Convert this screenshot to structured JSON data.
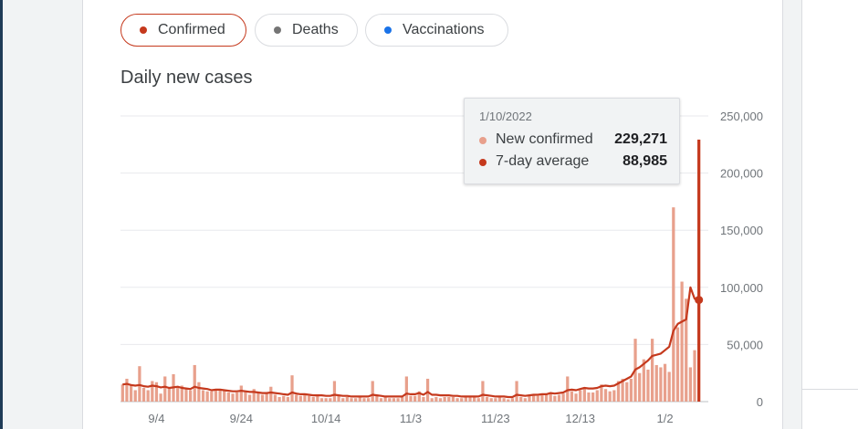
{
  "filters": [
    {
      "label": "Confirmed",
      "color": "#c5391d",
      "selected": true
    },
    {
      "label": "Deaths",
      "color": "#757575",
      "selected": false
    },
    {
      "label": "Vaccinations",
      "color": "#1a73e8",
      "selected": false
    }
  ],
  "tooltip": {
    "date": "1/10/2022",
    "rows": [
      {
        "label": "New confirmed",
        "value": "229,271",
        "color": "#e8a08c"
      },
      {
        "label": "7-day average",
        "value": "88,985",
        "color": "#c5391d"
      }
    ]
  },
  "chart_data": {
    "type": "bar",
    "title": "Daily new cases",
    "xlabel": "",
    "ylabel": "",
    "ylim": [
      0,
      250000
    ],
    "yticks": [
      0,
      50000,
      100000,
      150000,
      200000,
      250000
    ],
    "ytick_labels": [
      "0",
      "50,000",
      "100,000",
      "150,000",
      "200,000",
      "250,000"
    ],
    "xtick_labels": [
      "9/4",
      "9/24",
      "10/14",
      "11/3",
      "11/23",
      "12/13",
      "1/2"
    ],
    "xtick_days": [
      8,
      28,
      48,
      68,
      88,
      108,
      128
    ],
    "start_date": "2021-08-27",
    "grid": true,
    "highlight_day": 136,
    "series": [
      {
        "name": "New confirmed",
        "color": "#e8a08c",
        "values": [
          15000,
          20000,
          14000,
          10000,
          31000,
          12000,
          10000,
          18000,
          17000,
          7000,
          22000,
          12000,
          24000,
          13000,
          14000,
          11000,
          10000,
          32000,
          17000,
          10000,
          9000,
          9000,
          11000,
          10000,
          10000,
          8000,
          7000,
          8000,
          14000,
          9000,
          6000,
          11000,
          8000,
          6000,
          7000,
          13000,
          6000,
          4000,
          5000,
          4000,
          23000,
          6000,
          5000,
          7000,
          5000,
          4000,
          5000,
          3000,
          3000,
          3000,
          18000,
          6000,
          3000,
          4000,
          3000,
          3000,
          5000,
          3000,
          3000,
          18000,
          5000,
          3000,
          4000,
          3000,
          3000,
          3000,
          4000,
          22000,
          5000,
          5000,
          9000,
          4000,
          20000,
          3000,
          4000,
          3000,
          4000,
          4000,
          4000,
          3000,
          3000,
          4000,
          5000,
          4000,
          3000,
          18000,
          4000,
          3000,
          3000,
          4000,
          3000,
          2000,
          3000,
          18000,
          4000,
          3000,
          5000,
          6000,
          5000,
          7000,
          6000,
          8000,
          5000,
          6000,
          7000,
          22000,
          9000,
          7000,
          10000,
          12000,
          8000,
          8000,
          10000,
          15000,
          11000,
          9000,
          10000,
          18000,
          20000,
          17000,
          20000,
          55000,
          25000,
          37000,
          28000,
          55000,
          32000,
          30000,
          33000,
          26000,
          170000,
          65000,
          105000,
          90000,
          30000,
          45000,
          229271
        ]
      },
      {
        "name": "7-day average",
        "color": "#c5391d",
        "values": [
          15000,
          15500,
          14500,
          14000,
          14500,
          13500,
          13000,
          14000,
          13500,
          12500,
          13000,
          12000,
          12500,
          13000,
          12000,
          11500,
          11000,
          13000,
          12000,
          11500,
          11000,
          10000,
          10500,
          10500,
          10000,
          9500,
          9000,
          9000,
          9500,
          9000,
          8500,
          8500,
          8000,
          7500,
          7500,
          8000,
          7500,
          7000,
          6500,
          6000,
          8000,
          7000,
          6500,
          6500,
          6000,
          5500,
          5500,
          5500,
          5000,
          5000,
          6000,
          5500,
          5000,
          5000,
          4500,
          4500,
          4500,
          4500,
          4500,
          6000,
          5500,
          5000,
          4500,
          4500,
          4500,
          4500,
          4500,
          7000,
          6500,
          6500,
          7500,
          6000,
          8500,
          6000,
          6000,
          5500,
          5500,
          5500,
          5000,
          5000,
          4500,
          4500,
          4500,
          4500,
          4500,
          6000,
          5500,
          5000,
          4500,
          4500,
          4500,
          4000,
          4000,
          6000,
          5500,
          5000,
          5500,
          6000,
          6000,
          6500,
          6500,
          7500,
          7000,
          7500,
          8000,
          10000,
          10500,
          10000,
          11000,
          12000,
          11500,
          11500,
          12000,
          13500,
          14000,
          13500,
          14000,
          16000,
          18000,
          20000,
          22000,
          28000,
          30000,
          33000,
          36000,
          40000,
          41000,
          42000,
          45000,
          48000,
          62000,
          68000,
          70000,
          72000,
          100000,
          90000,
          88985
        ]
      }
    ]
  }
}
